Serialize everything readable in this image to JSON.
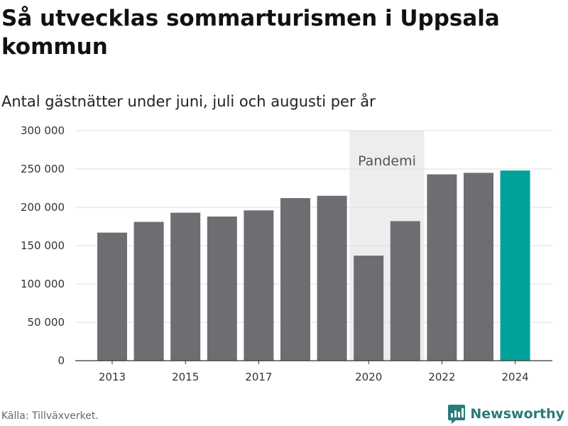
{
  "title": "Så utvecklas sommarturismen i Uppsala kommun",
  "subtitle": "Antal gästnätter under juni, juli och augusti per år",
  "source": "Källa: Tillväxverket.",
  "brand": "Newsworthy",
  "colors": {
    "bar": "#6e6d72",
    "highlight": "#00a39a",
    "band": "#ededed",
    "grid": "#dedede",
    "brand": "#2a7a7c"
  },
  "chart_data": {
    "type": "bar",
    "categories": [
      "2013",
      "2014",
      "2015",
      "2016",
      "2017",
      "2018",
      "2019",
      "2020",
      "2021",
      "2022",
      "2023",
      "2024"
    ],
    "values": [
      167000,
      181000,
      193000,
      188000,
      196000,
      212000,
      215000,
      137000,
      182000,
      243000,
      245000,
      248000
    ],
    "highlight_index": 11,
    "ylim": [
      0,
      300000
    ],
    "yticks": [
      0,
      50000,
      100000,
      150000,
      200000,
      250000,
      300000
    ],
    "ytick_labels": [
      "0",
      "50 000",
      "100 000",
      "150 000",
      "200 000",
      "250 000",
      "300 000"
    ],
    "xtick_labels": [
      "2013",
      "2015",
      "2017",
      "2020",
      "2022",
      "2024"
    ],
    "shaded_band": {
      "label": "Pandemi",
      "from": "2020",
      "to": "2021"
    },
    "grid": true
  }
}
